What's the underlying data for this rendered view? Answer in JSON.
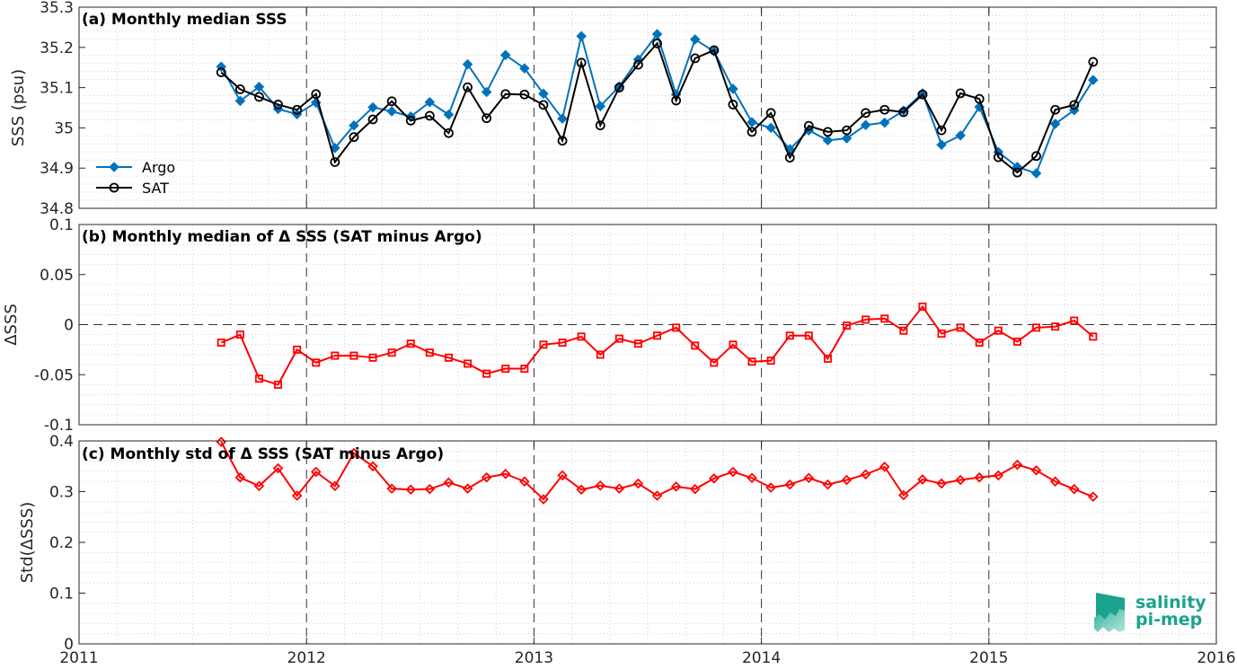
{
  "x_axis": {
    "ticks": [
      "2011",
      "2012",
      "2013",
      "2014",
      "2015",
      "2016"
    ],
    "range": [
      2011,
      2016
    ]
  },
  "chart_data": [
    {
      "type": "line",
      "title": "(a) Monthly median SSS",
      "ylabel": "SSS (psu)",
      "ylim": [
        34.8,
        35.3
      ],
      "yticks": [
        "34.8",
        "34.9",
        "35",
        "35.1",
        "35.2",
        "35.3"
      ],
      "grid": true,
      "legend": "left",
      "series": [
        {
          "name": "Argo",
          "color": "#0072bd",
          "marker": "diamond-filled",
          "values": [
            35.152,
            35.067,
            35.102,
            35.047,
            35.034,
            35.063,
            34.95,
            35.006,
            35.051,
            35.041,
            35.028,
            35.064,
            35.033,
            35.158,
            35.089,
            35.181,
            35.148,
            35.085,
            35.023,
            35.228,
            35.054,
            35.103,
            35.17,
            35.233,
            35.083,
            35.22,
            35.19,
            35.097,
            35.014,
            35.0,
            34.947,
            34.994,
            34.969,
            34.974,
            35.007,
            35.013,
            35.043,
            35.086,
            34.958,
            34.981,
            35.052,
            34.94,
            34.903,
            34.887,
            35.01,
            35.044,
            35.119
          ]
        },
        {
          "name": "SAT",
          "color": "#000000",
          "marker": "circle-open",
          "values": [
            35.138,
            35.096,
            35.077,
            35.058,
            35.045,
            35.084,
            34.915,
            34.977,
            35.021,
            35.066,
            35.018,
            35.03,
            34.987,
            35.101,
            35.024,
            35.084,
            35.083,
            35.057,
            34.968,
            35.162,
            35.006,
            35.1,
            35.157,
            35.21,
            35.068,
            35.173,
            35.193,
            35.058,
            34.99,
            35.037,
            34.926,
            35.005,
            34.99,
            34.994,
            35.037,
            35.045,
            35.039,
            35.083,
            34.994,
            35.086,
            35.072,
            34.927,
            34.889,
            34.93,
            35.045,
            35.057,
            35.164
          ]
        }
      ]
    },
    {
      "type": "line",
      "title": "(b) Monthly median of Δ SSS (SAT minus Argo)",
      "ylabel": "ΔSSS",
      "ylim": [
        -0.1,
        0.1
      ],
      "yticks": [
        "-0.1",
        "-0.05",
        "0",
        "0.05",
        "0.1"
      ],
      "grid": true,
      "series": [
        {
          "color": "#ff0000",
          "marker": "square-open",
          "values": [
            -0.018,
            -0.01,
            -0.054,
            -0.06,
            -0.025,
            -0.038,
            -0.031,
            -0.031,
            -0.033,
            -0.028,
            -0.019,
            -0.028,
            -0.033,
            -0.039,
            -0.049,
            -0.044,
            -0.044,
            -0.02,
            -0.018,
            -0.012,
            -0.03,
            -0.014,
            -0.019,
            -0.011,
            -0.003,
            -0.021,
            -0.038,
            -0.02,
            -0.037,
            -0.036,
            -0.011,
            -0.011,
            -0.034,
            -0.001,
            0.005,
            0.006,
            -0.006,
            0.018,
            -0.009,
            -0.003,
            -0.018,
            -0.006,
            -0.017,
            -0.003,
            -0.002,
            0.004,
            -0.012
          ]
        }
      ]
    },
    {
      "type": "line",
      "title": "(c) Monthly std of Δ SSS (SAT minus Argo)",
      "ylabel": "Std(ΔSSS)",
      "ylim": [
        0,
        0.4
      ],
      "yticks": [
        "0",
        "0.1",
        "0.2",
        "0.3",
        "0.4"
      ],
      "grid": true,
      "series": [
        {
          "color": "#ff0000",
          "marker": "diamond-open",
          "values": [
            0.398,
            0.328,
            0.311,
            0.346,
            0.292,
            0.339,
            0.311,
            0.376,
            0.35,
            0.306,
            0.304,
            0.305,
            0.318,
            0.306,
            0.328,
            0.335,
            0.32,
            0.285,
            0.332,
            0.304,
            0.312,
            0.306,
            0.316,
            0.292,
            0.31,
            0.305,
            0.326,
            0.339,
            0.327,
            0.308,
            0.314,
            0.327,
            0.314,
            0.323,
            0.334,
            0.349,
            0.293,
            0.324,
            0.316,
            0.323,
            0.328,
            0.332,
            0.353,
            0.342,
            0.32,
            0.305,
            0.29
          ]
        }
      ]
    }
  ],
  "time_series": {
    "start_year": 2011,
    "start_month": 8,
    "n_months": 47
  },
  "logo": {
    "line1": "salinity",
    "line2": "pi-mep",
    "color": "#1aa38e"
  }
}
